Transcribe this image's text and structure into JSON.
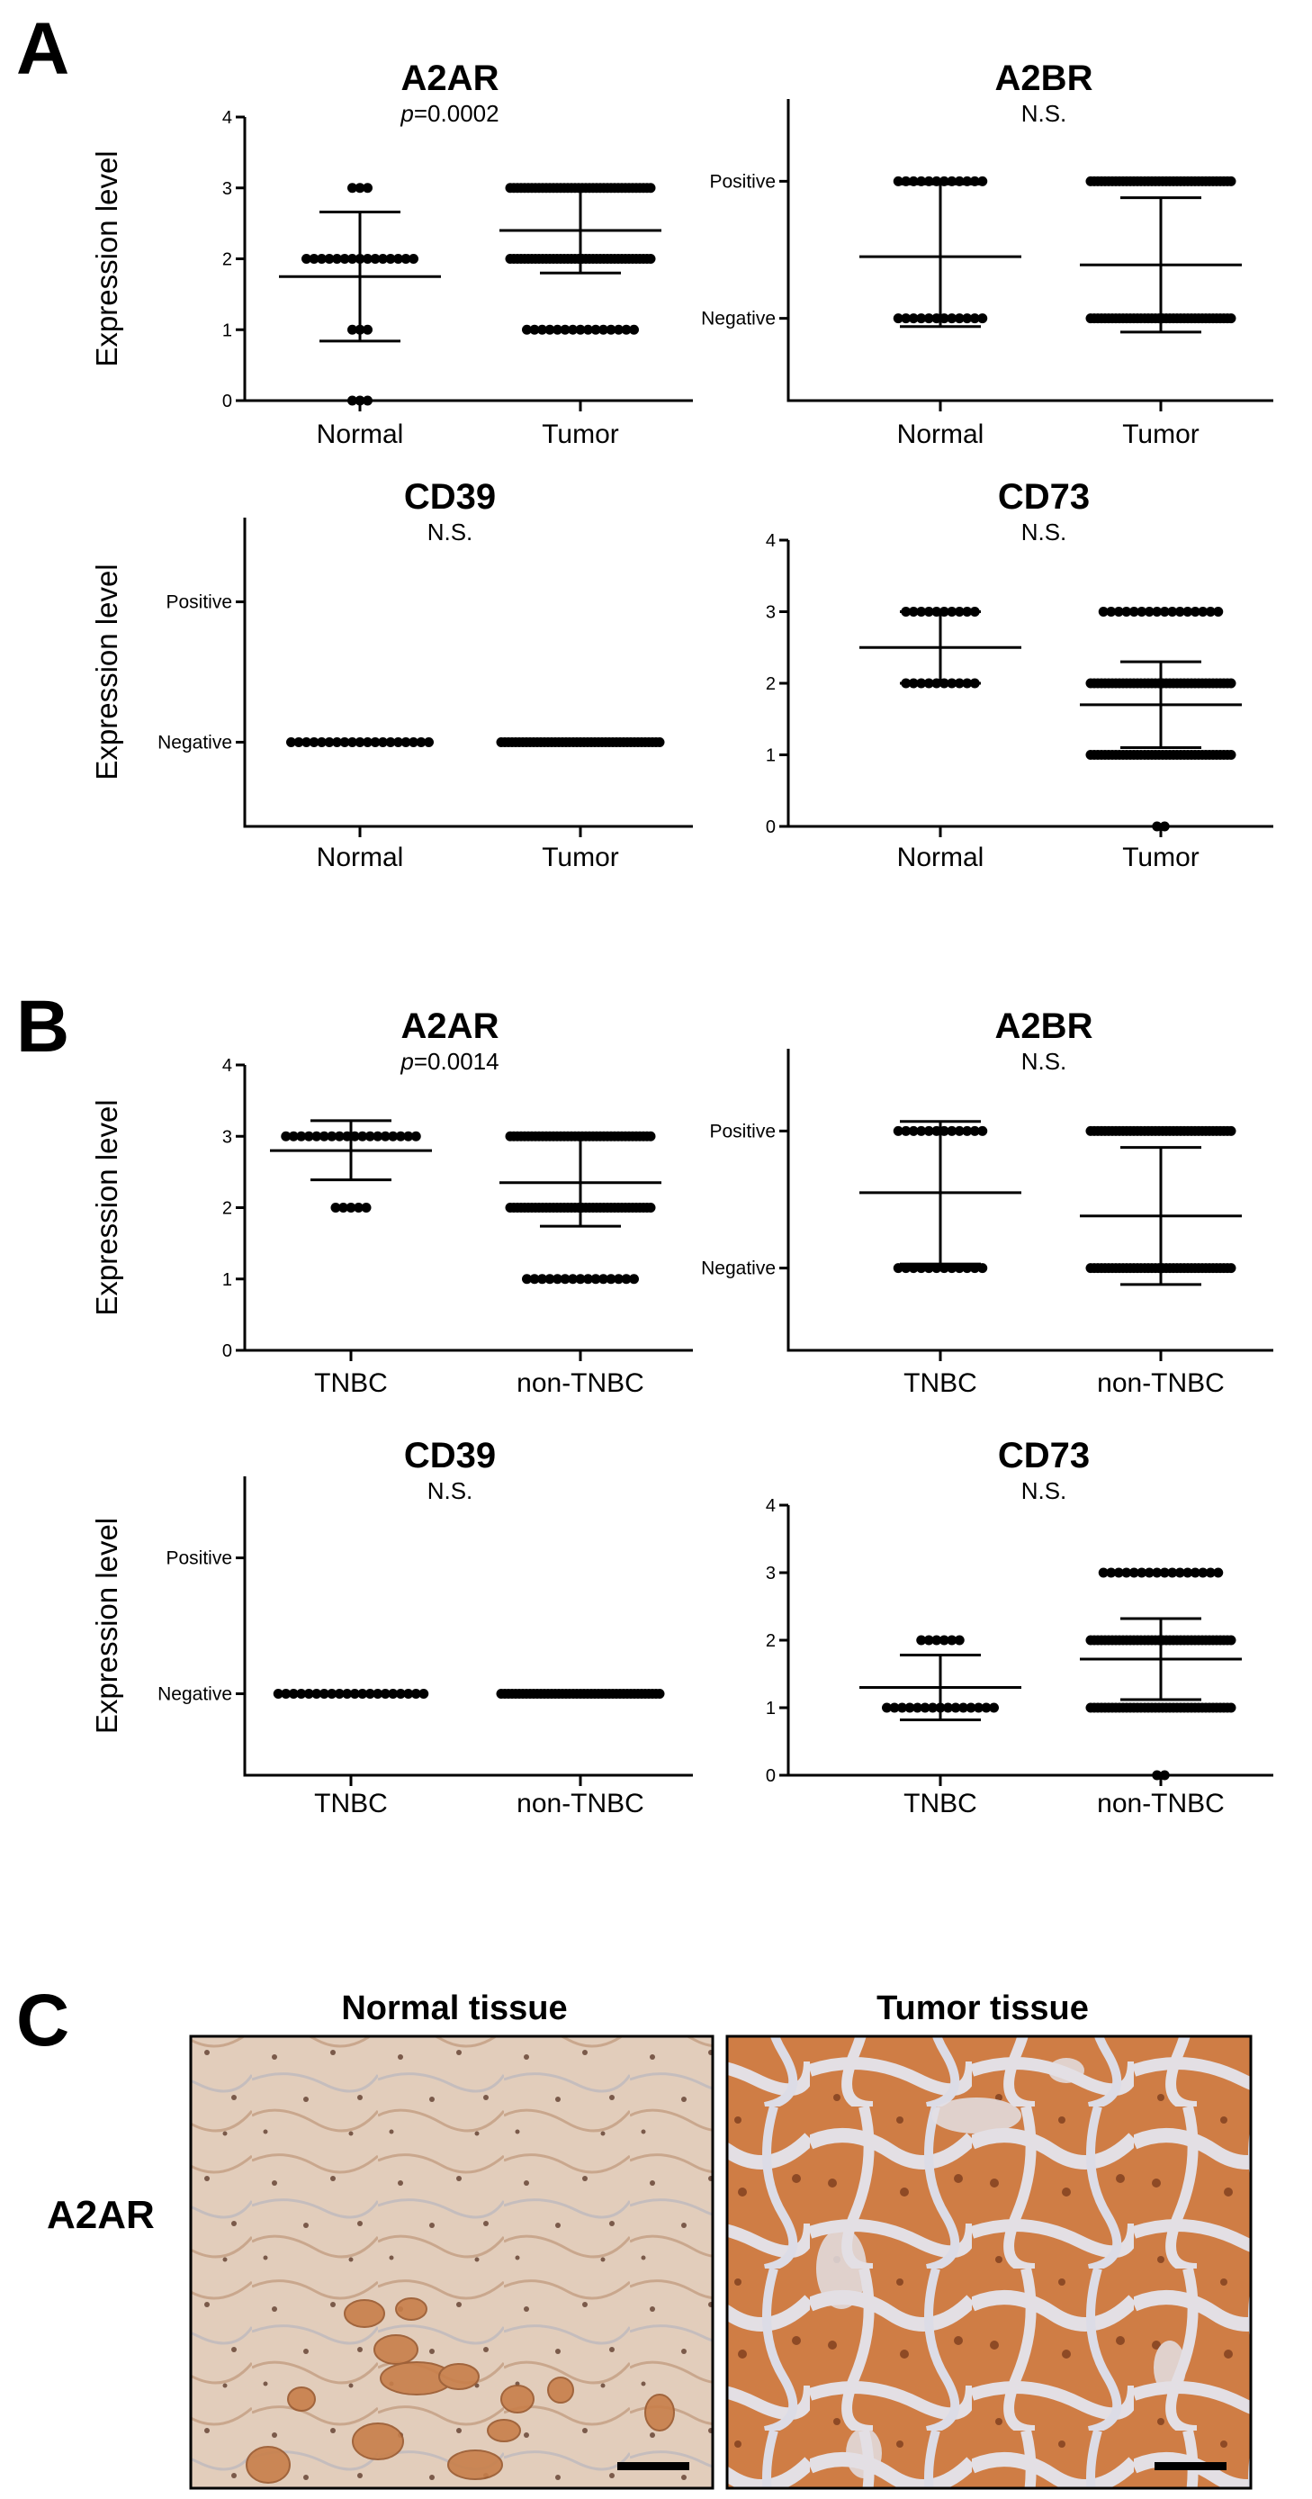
{
  "figure": {
    "panel_labels": [
      "A",
      "B",
      "C"
    ],
    "panel_c": {
      "headings": [
        "Normal tissue",
        "Tumor tissue"
      ],
      "row_label": "A2AR",
      "tissue_colors": {
        "normal_base": "#e2cdbb",
        "normal_stain": "#c87f4a",
        "tumor_base": "#cf7d45",
        "tumor_stroma": "#e3dfe4"
      }
    },
    "accent_color": "#000000"
  },
  "chart_data": [
    {
      "panel": "A",
      "type": "scatter",
      "title": "A2AR",
      "subtitle_italic": "p",
      "subtitle": "=0.0002",
      "ylabel": "Expression level",
      "ylim": [
        0,
        4
      ],
      "yticks": [
        0,
        1,
        2,
        3,
        4
      ],
      "y_is_categorical": false,
      "categories": [
        "Normal",
        "Tumor"
      ],
      "groups": [
        {
          "name": "Normal",
          "points": [
            {
              "y": 3,
              "n": 3
            },
            {
              "y": 2,
              "n": 15
            },
            {
              "y": 1,
              "n": 3
            },
            {
              "y": 0,
              "n": 3
            }
          ],
          "mean": 1.75,
          "sd_low": 0.84,
          "sd_high": 2.66
        },
        {
          "name": "Tumor",
          "points": [
            {
              "y": 3,
              "n": 40
            },
            {
              "y": 2,
              "n": 40
            },
            {
              "y": 1,
              "n": 15
            }
          ],
          "mean": 2.4,
          "sd_low": 1.8,
          "sd_high": 3.0
        }
      ]
    },
    {
      "panel": "A",
      "type": "scatter",
      "title": "A2BR",
      "subtitle_italic": "",
      "subtitle": "N.S.",
      "ylabel": "",
      "ylim": [
        -0.6,
        1.6
      ],
      "yticks": [
        0,
        1
      ],
      "ytick_labels": [
        "Negative",
        "Positive"
      ],
      "y_is_categorical": true,
      "categories": [
        "Normal",
        "Tumor"
      ],
      "groups": [
        {
          "name": "Normal",
          "points": [
            {
              "y": 1,
              "n": 12
            },
            {
              "y": 0,
              "n": 12
            }
          ],
          "mean": 0.45,
          "sd_low": -0.06,
          "sd_high": 0.98
        },
        {
          "name": "Tumor",
          "points": [
            {
              "y": 1,
              "n": 40
            },
            {
              "y": 0,
              "n": 40
            }
          ],
          "mean": 0.39,
          "sd_low": -0.1,
          "sd_high": 0.88
        }
      ]
    },
    {
      "panel": "A",
      "type": "scatter",
      "title": "CD39",
      "subtitle_italic": "",
      "subtitle": "N.S.",
      "ylabel": "Expression level",
      "ylim": [
        -0.6,
        1.6
      ],
      "yticks": [
        0,
        1
      ],
      "ytick_labels": [
        "Negative",
        "Positive"
      ],
      "y_is_categorical": true,
      "categories": [
        "Normal",
        "Tumor"
      ],
      "groups": [
        {
          "name": "Normal",
          "points": [
            {
              "y": 0,
              "n": 19
            }
          ],
          "mean": null,
          "sd_low": null,
          "sd_high": null
        },
        {
          "name": "Tumor",
          "points": [
            {
              "y": 0,
              "n": 45
            }
          ],
          "mean": null,
          "sd_low": null,
          "sd_high": null
        }
      ]
    },
    {
      "panel": "A",
      "type": "scatter",
      "title": "CD73",
      "subtitle_italic": "",
      "subtitle": "N.S.",
      "ylabel": "",
      "ylim": [
        0,
        4
      ],
      "yticks": [
        0,
        1,
        2,
        3,
        4
      ],
      "y_is_categorical": false,
      "categories": [
        "Normal",
        "Tumor"
      ],
      "groups": [
        {
          "name": "Normal",
          "points": [
            {
              "y": 3,
              "n": 10
            },
            {
              "y": 2,
              "n": 10
            }
          ],
          "mean": 2.5,
          "sd_low": 2.0,
          "sd_high": 3.0
        },
        {
          "name": "Tumor",
          "points": [
            {
              "y": 3,
              "n": 16
            },
            {
              "y": 2,
              "n": 40
            },
            {
              "y": 1,
              "n": 40
            },
            {
              "y": 0,
              "n": 2
            }
          ],
          "mean": 1.7,
          "sd_low": 1.1,
          "sd_high": 2.3
        }
      ]
    },
    {
      "panel": "B",
      "type": "scatter",
      "title": "A2AR",
      "subtitle_italic": "p",
      "subtitle": "=0.0014",
      "ylabel": "Expression level",
      "ylim": [
        0,
        4
      ],
      "yticks": [
        0,
        1,
        2,
        3,
        4
      ],
      "y_is_categorical": false,
      "categories": [
        "TNBC",
        "non-TNBC"
      ],
      "groups": [
        {
          "name": "TNBC",
          "points": [
            {
              "y": 3,
              "n": 18
            },
            {
              "y": 2,
              "n": 5
            }
          ],
          "mean": 2.8,
          "sd_low": 2.39,
          "sd_high": 3.22
        },
        {
          "name": "non-TNBC",
          "points": [
            {
              "y": 3,
              "n": 40
            },
            {
              "y": 2,
              "n": 40
            },
            {
              "y": 1,
              "n": 15
            }
          ],
          "mean": 2.35,
          "sd_low": 1.74,
          "sd_high": 2.97
        }
      ]
    },
    {
      "panel": "B",
      "type": "scatter",
      "title": "A2BR",
      "subtitle_italic": "",
      "subtitle": "N.S.",
      "ylabel": "",
      "ylim": [
        -0.6,
        1.6
      ],
      "yticks": [
        0,
        1
      ],
      "ytick_labels": [
        "Negative",
        "Positive"
      ],
      "y_is_categorical": true,
      "categories": [
        "TNBC",
        "non-TNBC"
      ],
      "groups": [
        {
          "name": "TNBC",
          "points": [
            {
              "y": 1,
              "n": 12
            },
            {
              "y": 0,
              "n": 12
            }
          ],
          "mean": 0.55,
          "sd_low": 0.03,
          "sd_high": 1.07
        },
        {
          "name": "non-TNBC",
          "points": [
            {
              "y": 1,
              "n": 40
            },
            {
              "y": 0,
              "n": 40
            }
          ],
          "mean": 0.38,
          "sd_low": -0.12,
          "sd_high": 0.88
        }
      ]
    },
    {
      "panel": "B",
      "type": "scatter",
      "title": "CD39",
      "subtitle_italic": "",
      "subtitle": "N.S.",
      "ylabel": "Expression level",
      "ylim": [
        -0.6,
        1.6
      ],
      "yticks": [
        0,
        1
      ],
      "ytick_labels": [
        "Negative",
        "Positive"
      ],
      "y_is_categorical": true,
      "categories": [
        "TNBC",
        "non-TNBC"
      ],
      "groups": [
        {
          "name": "TNBC",
          "points": [
            {
              "y": 0,
              "n": 20
            }
          ],
          "mean": null,
          "sd_low": null,
          "sd_high": null
        },
        {
          "name": "non-TNBC",
          "points": [
            {
              "y": 0,
              "n": 45
            }
          ],
          "mean": null,
          "sd_low": null,
          "sd_high": null
        }
      ]
    },
    {
      "panel": "B",
      "type": "scatter",
      "title": "CD73",
      "subtitle_italic": "",
      "subtitle": "N.S.",
      "ylabel": "",
      "ylim": [
        0,
        4
      ],
      "yticks": [
        0,
        1,
        2,
        3,
        4
      ],
      "y_is_categorical": false,
      "categories": [
        "TNBC",
        "non-TNBC"
      ],
      "groups": [
        {
          "name": "TNBC",
          "points": [
            {
              "y": 2,
              "n": 6
            },
            {
              "y": 1,
              "n": 15
            }
          ],
          "mean": 1.3,
          "sd_low": 0.82,
          "sd_high": 1.78
        },
        {
          "name": "non-TNBC",
          "points": [
            {
              "y": 3,
              "n": 16
            },
            {
              "y": 2,
              "n": 40
            },
            {
              "y": 1,
              "n": 40
            },
            {
              "y": 0,
              "n": 2
            }
          ],
          "mean": 1.72,
          "sd_low": 1.12,
          "sd_high": 2.32
        }
      ]
    }
  ]
}
